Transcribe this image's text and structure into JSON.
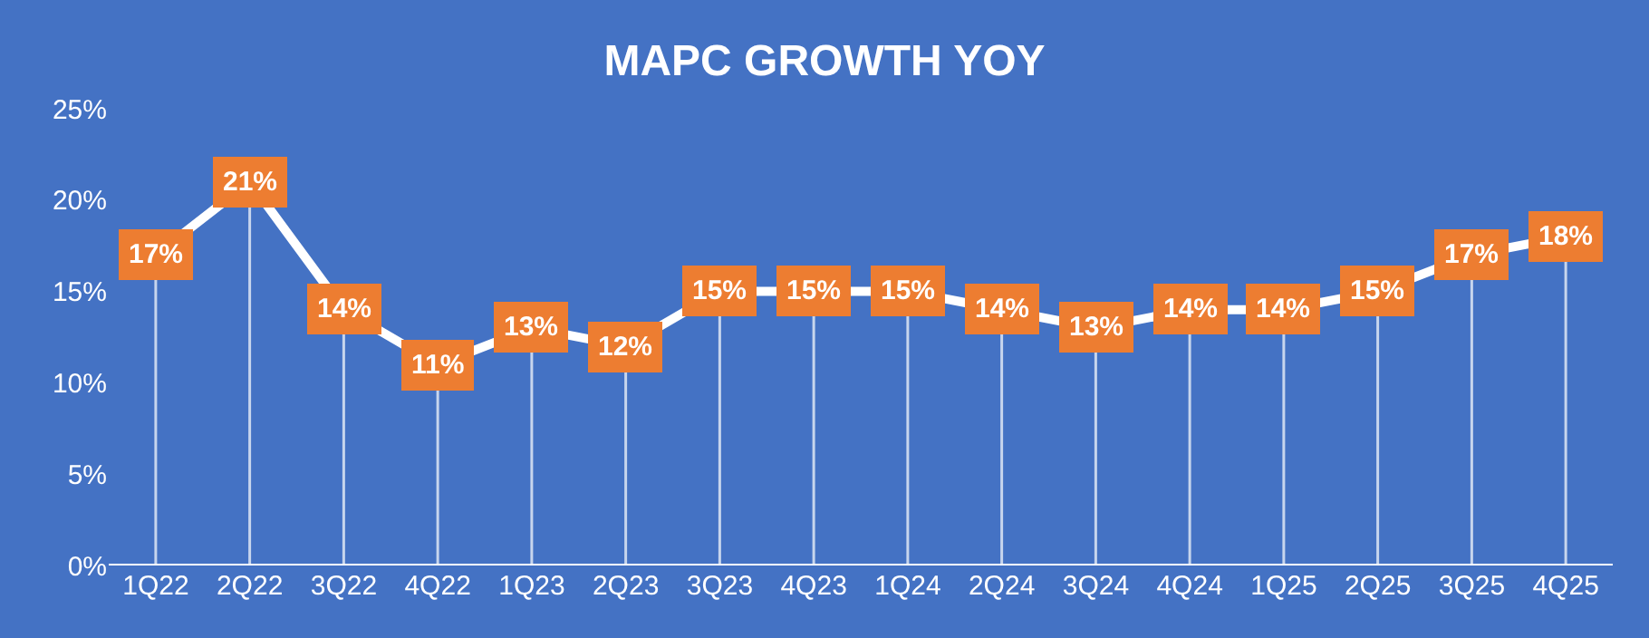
{
  "chart_data": {
    "type": "line",
    "title": "MAPC GROWTH YOY",
    "categories": [
      "1Q22",
      "2Q22",
      "3Q22",
      "4Q22",
      "1Q23",
      "2Q23",
      "3Q23",
      "4Q23",
      "1Q24",
      "2Q24",
      "3Q24",
      "4Q24",
      "1Q25",
      "2Q25",
      "3Q25",
      "4Q25"
    ],
    "series": [
      {
        "color": "#ffffff",
        "values": [
          17,
          21,
          14,
          11,
          13,
          12,
          15,
          15,
          15,
          14,
          13,
          14,
          14,
          15,
          17,
          18
        ],
        "value_labels": [
          "17%",
          "21%",
          "14%",
          "11%",
          "13%",
          "12%",
          "15%",
          "15%",
          "15%",
          "14%",
          "13%",
          "14%",
          "14%",
          "15%",
          "17%",
          "18%"
        ]
      }
    ],
    "ylim": [
      0,
      25
    ],
    "yticks": [
      {
        "value": 0,
        "label": "0%"
      },
      {
        "value": 5,
        "label": "5%"
      },
      {
        "value": 10,
        "label": "10%"
      },
      {
        "value": 15,
        "label": "15%"
      },
      {
        "value": 20,
        "label": "20%"
      },
      {
        "value": 25,
        "label": "25%"
      }
    ],
    "grid": "x",
    "legend": false,
    "marker": "square",
    "line_style": "solid"
  }
}
